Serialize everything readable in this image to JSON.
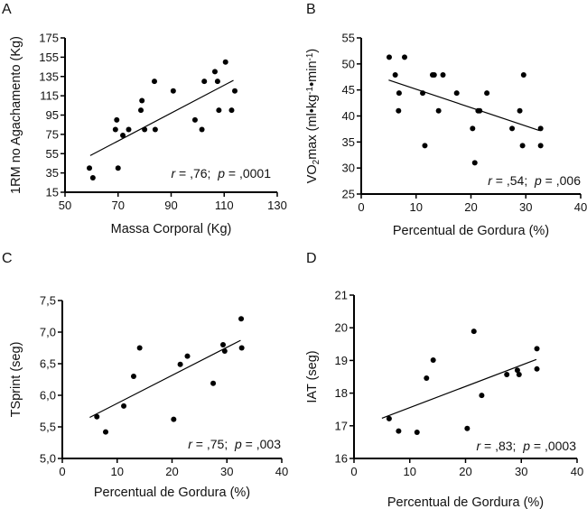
{
  "chart_data": [
    {
      "panel": "A",
      "type": "scatter",
      "xlabel": "Massa Corporal (Kg)",
      "ylabel": "1RM no Agachamento (Kg)",
      "xlim": [
        50,
        130
      ],
      "ylim": [
        15,
        175
      ],
      "xticks": [
        50,
        70,
        90,
        110,
        130
      ],
      "yticks": [
        15,
        35,
        55,
        75,
        95,
        115,
        135,
        155,
        175
      ],
      "xtick_labels": [
        "50",
        "70",
        "90",
        "110",
        "130"
      ],
      "ytick_labels": [
        "15",
        "35",
        "55",
        "75",
        "95",
        "115",
        "135",
        "155",
        "175"
      ],
      "grid": false,
      "annotation": {
        "r_symbol": "r",
        "r_value": " = ,76;",
        "p_symbol": "p",
        "p_value": " = ,0001"
      },
      "points": [
        [
          59.2,
          40
        ],
        [
          60.5,
          30
        ],
        [
          69,
          80
        ],
        [
          69.5,
          90
        ],
        [
          70,
          40
        ],
        [
          71.8,
          74
        ],
        [
          74,
          80
        ],
        [
          78.6,
          100
        ],
        [
          79,
          110
        ],
        [
          80,
          80
        ],
        [
          83.7,
          130
        ],
        [
          84,
          80
        ],
        [
          90.8,
          120
        ],
        [
          99,
          90
        ],
        [
          101.6,
          80
        ],
        [
          102.5,
          130
        ],
        [
          106.5,
          140
        ],
        [
          107.5,
          130
        ],
        [
          108,
          100
        ],
        [
          110.5,
          150
        ],
        [
          112.8,
          100
        ],
        [
          114,
          120
        ]
      ],
      "fit_line": [
        [
          59.5,
          53
        ],
        [
          113.5,
          131
        ]
      ]
    },
    {
      "panel": "B",
      "type": "scatter",
      "xlabel": "Percentual de Gordura (%)",
      "ylabel_parts": [
        "VO",
        "2",
        "max (ml•kg",
        "-1",
        "•min",
        "-1",
        ")"
      ],
      "ylabel": "VO2max (ml•kg-1•min-1)",
      "xlim": [
        0,
        40
      ],
      "ylim": [
        25,
        55
      ],
      "xticks": [
        0,
        10,
        20,
        30,
        40
      ],
      "yticks": [
        25,
        30,
        35,
        40,
        45,
        50,
        55
      ],
      "xtick_labels": [
        "0",
        "10",
        "20",
        "30",
        "40"
      ],
      "ytick_labels": [
        "25",
        "30",
        "35",
        "40",
        "45",
        "50",
        "55"
      ],
      "grid": false,
      "annotation": {
        "r_symbol": "r",
        "r_value": " = ,54;",
        "p_symbol": "p",
        "p_value": " = ,006"
      },
      "points": [
        [
          5.1,
          51.3
        ],
        [
          7.9,
          51.3
        ],
        [
          6.2,
          47.9
        ],
        [
          6.9,
          44.4
        ],
        [
          6.8,
          41
        ],
        [
          11.2,
          44.4
        ],
        [
          11.6,
          34.3
        ],
        [
          13,
          47.9
        ],
        [
          13.3,
          47.9
        ],
        [
          14.9,
          47.9
        ],
        [
          14.1,
          41
        ],
        [
          17.4,
          44.4
        ],
        [
          20.3,
          37.6
        ],
        [
          20.7,
          31
        ],
        [
          21.3,
          41
        ],
        [
          21.6,
          41
        ],
        [
          22.9,
          44.4
        ],
        [
          27.5,
          37.6
        ],
        [
          28.9,
          41
        ],
        [
          29.4,
          34.3
        ],
        [
          29.6,
          47.9
        ],
        [
          32.7,
          37.6
        ],
        [
          32.7,
          34.3
        ]
      ],
      "fit_line": [
        [
          5,
          46.9
        ],
        [
          32.5,
          37.2
        ]
      ]
    },
    {
      "panel": "C",
      "type": "scatter",
      "xlabel": "Percentual de Gordura (%)",
      "ylabel": "TSprint (seg)",
      "xlim": [
        0,
        40
      ],
      "ylim": [
        5.0,
        7.5
      ],
      "xticks": [
        0,
        10,
        20,
        30,
        40
      ],
      "yticks": [
        5.0,
        5.5,
        6.0,
        6.5,
        7.0,
        7.5
      ],
      "xtick_labels": [
        "0",
        "10",
        "20",
        "30",
        "40"
      ],
      "ytick_labels": [
        "5,0",
        "5,5",
        "6,0",
        "6,5",
        "7,0",
        "7,5"
      ],
      "grid": false,
      "annotation": {
        "r_symbol": "r",
        "r_value": " = ,75;",
        "p_symbol": "p",
        "p_value": " = ,003"
      },
      "points": [
        [
          6.3,
          5.66
        ],
        [
          7.9,
          5.42
        ],
        [
          11.2,
          5.83
        ],
        [
          13,
          6.3
        ],
        [
          14.1,
          6.75
        ],
        [
          20.3,
          5.62
        ],
        [
          21.5,
          6.49
        ],
        [
          22.8,
          6.62
        ],
        [
          27.5,
          6.19
        ],
        [
          29.3,
          6.8
        ],
        [
          29.6,
          6.7
        ],
        [
          32.6,
          7.21
        ],
        [
          32.7,
          6.75
        ]
      ],
      "fit_line": [
        [
          5,
          5.65
        ],
        [
          32.5,
          6.87
        ]
      ]
    },
    {
      "panel": "D",
      "type": "scatter",
      "xlabel": "Percentual de Gordura (%)",
      "ylabel": "IAT (seg)",
      "xlim": [
        0,
        40
      ],
      "ylim": [
        16,
        21
      ],
      "xticks": [
        0,
        10,
        20,
        30,
        40
      ],
      "yticks": [
        16,
        17,
        18,
        19,
        20,
        21
      ],
      "xtick_labels": [
        "0",
        "10",
        "20",
        "30",
        "40"
      ],
      "ytick_labels": [
        "16",
        "17",
        "18",
        "19",
        "20",
        "21"
      ],
      "grid": false,
      "annotation": {
        "r_symbol": "r",
        "r_value": " = ,83;",
        "p_symbol": "p",
        "p_value": " = ,0003"
      },
      "points": [
        [
          6.3,
          17.22
        ],
        [
          8,
          16.84
        ],
        [
          11.3,
          16.8
        ],
        [
          13,
          18.46
        ],
        [
          14.2,
          19.01
        ],
        [
          20.3,
          16.92
        ],
        [
          21.5,
          19.89
        ],
        [
          22.9,
          17.93
        ],
        [
          27.4,
          18.57
        ],
        [
          29.3,
          18.7
        ],
        [
          29.6,
          18.57
        ],
        [
          32.8,
          19.36
        ],
        [
          32.8,
          18.74
        ]
      ],
      "fit_line": [
        [
          5,
          17.23
        ],
        [
          32.7,
          19.03
        ]
      ]
    }
  ]
}
